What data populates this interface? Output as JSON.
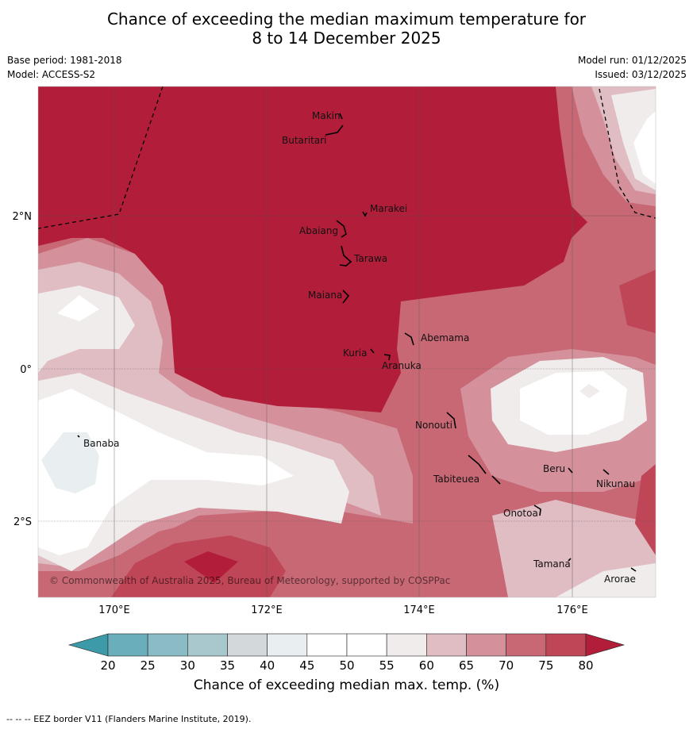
{
  "title_line1": "Chance of exceeding the median maximum temperature for",
  "title_line2": "8 to 14 December 2025",
  "base_period": "Base period: 1981-2018",
  "model": "Model: ACCESS-S2",
  "model_run": "Model run: 01/12/2025",
  "issued": "Issued: 03/12/2025",
  "copyright": "© Commonwealth of Australia 2025, Bureau of Meteorology, supported by COSPPac",
  "lat_labels": [
    "2°N",
    "0°",
    "2°S"
  ],
  "lon_labels": [
    "170°E",
    "172°E",
    "174°E",
    "176°E"
  ],
  "places": [
    "Makin",
    "Butaritari",
    "Marakei",
    "Abaiang",
    "Tarawa",
    "Maiana",
    "Abemama",
    "Kuria",
    "Aranuka",
    "Nonouti",
    "Banaba",
    "Tabiteuea",
    "Beru",
    "Nikunau",
    "Onotoa",
    "Tamana",
    "Arorae"
  ],
  "colorbar": {
    "ticks": [
      "20",
      "25",
      "30",
      "35",
      "40",
      "45",
      "50",
      "55",
      "60",
      "65",
      "70",
      "75",
      "80"
    ],
    "colors": {
      "below_20": "#3d9aa8",
      "20_25": "#6aaebb",
      "25_30": "#8bbcc6",
      "30_35": "#a9c8ce",
      "35_40": "#d3d9db",
      "40_45": "#e9eef0",
      "45_50": "#ffffff",
      "50_55": "#ffffff",
      "55_60": "#efeceb",
      "60_65": "#e0bcc3",
      "65_70": "#d4919c",
      "70_75": "#c86874",
      "75_80": "#bf4656",
      "above_80": "#b21e3a"
    },
    "label": "Chance of exceeding median max. temp. (%)"
  },
  "footer": "-- -- -- EEZ border V11 (Flanders Marine Institute, 2019)."
}
